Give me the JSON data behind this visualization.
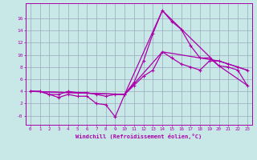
{
  "background_color": "#c8e8e8",
  "grid_color": "#99aabb",
  "line_color": "#aa00aa",
  "xlabel": "Windchill (Refroidissement éolien,°C)",
  "xlim": [
    -0.5,
    23.5
  ],
  "ylim": [
    -1.5,
    18.5
  ],
  "xticks": [
    0,
    1,
    2,
    3,
    4,
    5,
    6,
    7,
    8,
    9,
    10,
    11,
    12,
    13,
    14,
    15,
    16,
    17,
    18,
    19,
    20,
    21,
    22,
    23
  ],
  "yticks": [
    0,
    2,
    4,
    6,
    8,
    10,
    12,
    14,
    16
  ],
  "ytick_labels": [
    "-0",
    "2",
    "4",
    "6",
    "8",
    "10",
    "12",
    "14",
    "16"
  ],
  "curve1_x": [
    0,
    1,
    2,
    3,
    4,
    5,
    6,
    7,
    8,
    9,
    10,
    11,
    12,
    13,
    14,
    15,
    16,
    17,
    18,
    19,
    20,
    21,
    22,
    23
  ],
  "curve1_y": [
    4.0,
    4.0,
    3.5,
    3.0,
    3.5,
    3.2,
    3.2,
    2.0,
    1.8,
    -0.2,
    3.5,
    5.5,
    9.0,
    13.5,
    17.3,
    15.5,
    14.2,
    11.5,
    9.5,
    9.5,
    8.2,
    8.0,
    7.5,
    5.0
  ],
  "curve2_x": [
    0,
    1,
    2,
    3,
    4,
    5,
    6,
    7,
    8,
    9,
    10,
    11,
    12,
    13,
    14,
    15,
    16,
    17,
    18,
    19,
    20,
    21,
    22,
    23
  ],
  "curve2_y": [
    4.0,
    4.0,
    3.5,
    3.5,
    4.0,
    3.8,
    3.8,
    3.5,
    3.2,
    3.5,
    3.5,
    5.0,
    6.5,
    7.5,
    10.5,
    9.5,
    8.5,
    8.0,
    7.5,
    9.0,
    9.0,
    8.5,
    8.0,
    7.5
  ],
  "curve3_x": [
    0,
    10,
    14,
    20,
    23
  ],
  "curve3_y": [
    4.0,
    3.5,
    17.3,
    8.2,
    5.0
  ],
  "curve4_x": [
    0,
    10,
    14,
    20,
    23
  ],
  "curve4_y": [
    4.0,
    3.5,
    10.5,
    9.0,
    7.5
  ]
}
